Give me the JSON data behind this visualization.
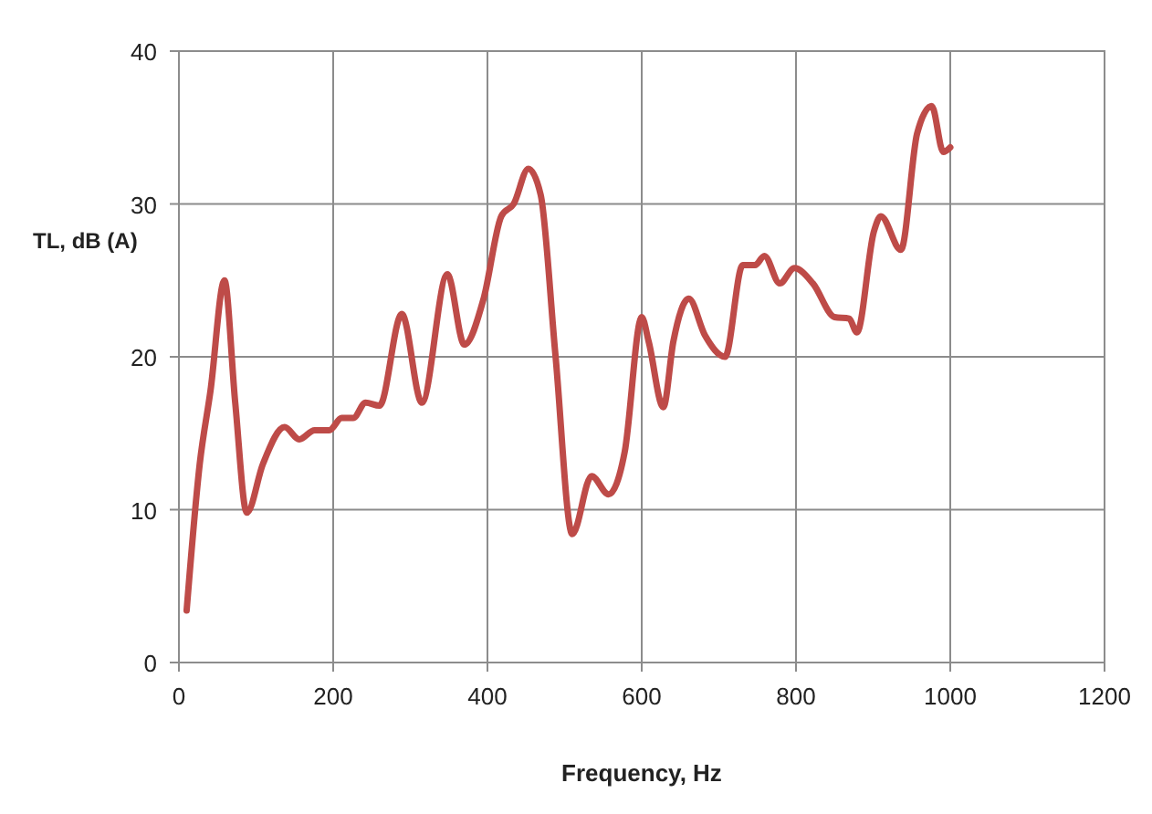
{
  "chart_data": {
    "type": "line",
    "xlabel": "Frequency, Hz",
    "ylabel": "TL, dB (A)",
    "xlim": [
      0,
      1200
    ],
    "xticks": [
      0,
      200,
      400,
      600,
      800,
      1000,
      1200
    ],
    "ylim": [
      0,
      40
    ],
    "yticks": [
      0,
      10,
      20,
      30,
      40
    ],
    "grid": true,
    "line_style": "solid",
    "series": [
      {
        "color": "#be4b48",
        "x": [
          10,
          27,
          41,
          59,
          73,
          88,
          109,
          137,
          156,
          176,
          195,
          211,
          226,
          242,
          260,
          289,
          315,
          348,
          370,
          395,
          418,
          434,
          453,
          469,
          488,
          510,
          535,
          557,
          578,
          600,
          609,
          628,
          641,
          661,
          682,
          708,
          731,
          747,
          759,
          779,
          798,
          822,
          850,
          869,
          879,
          901,
          910,
          936,
          957,
          976,
          991,
          1000
        ],
        "values": [
          3.4,
          13,
          17.8,
          25,
          17,
          9.8,
          13,
          15.4,
          14.6,
          15.2,
          15.2,
          16,
          16,
          17,
          16.8,
          22.8,
          17,
          25.4,
          20.8,
          23.8,
          29.2,
          30,
          32.3,
          30.6,
          20.2,
          8.4,
          12.2,
          11,
          13.8,
          22.6,
          21,
          16.7,
          21,
          23.8,
          21.4,
          20,
          26,
          26,
          26.6,
          24.8,
          25.8,
          24.8,
          22.6,
          22.5,
          21.6,
          28.2,
          29.2,
          27,
          34.6,
          36.4,
          33.4,
          33.7
        ]
      }
    ]
  }
}
